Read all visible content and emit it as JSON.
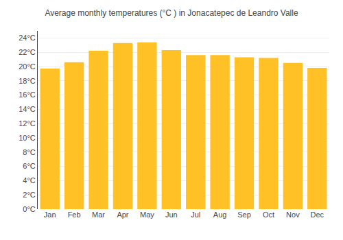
{
  "chart_data": {
    "type": "bar",
    "title": "Average monthly temperatures (°C ) in Jonacatepec de Leandro Valle",
    "categories": [
      "Jan",
      "Feb",
      "Mar",
      "Apr",
      "May",
      "Jun",
      "Jul",
      "Aug",
      "Sep",
      "Oct",
      "Nov",
      "Dec"
    ],
    "values": [
      19.7,
      20.6,
      22.2,
      23.3,
      23.4,
      22.3,
      21.6,
      21.6,
      21.3,
      21.2,
      20.5,
      19.8
    ],
    "color": "#FFC125",
    "ylim": [
      0,
      25
    ],
    "yticks": [
      {
        "value": 0,
        "label": "0°C"
      },
      {
        "value": 2,
        "label": "2°C"
      },
      {
        "value": 4,
        "label": "4°C"
      },
      {
        "value": 6,
        "label": "6°C"
      },
      {
        "value": 8,
        "label": "8°C"
      },
      {
        "value": 10,
        "label": "10°C"
      },
      {
        "value": 12,
        "label": "12°C"
      },
      {
        "value": 14,
        "label": "14°C"
      },
      {
        "value": 16,
        "label": "16°C"
      },
      {
        "value": 18,
        "label": "18°C"
      },
      {
        "value": 20,
        "label": "20°C"
      },
      {
        "value": 22,
        "label": "22°C"
      },
      {
        "value": 24,
        "label": "24°C"
      }
    ],
    "grid": true
  }
}
